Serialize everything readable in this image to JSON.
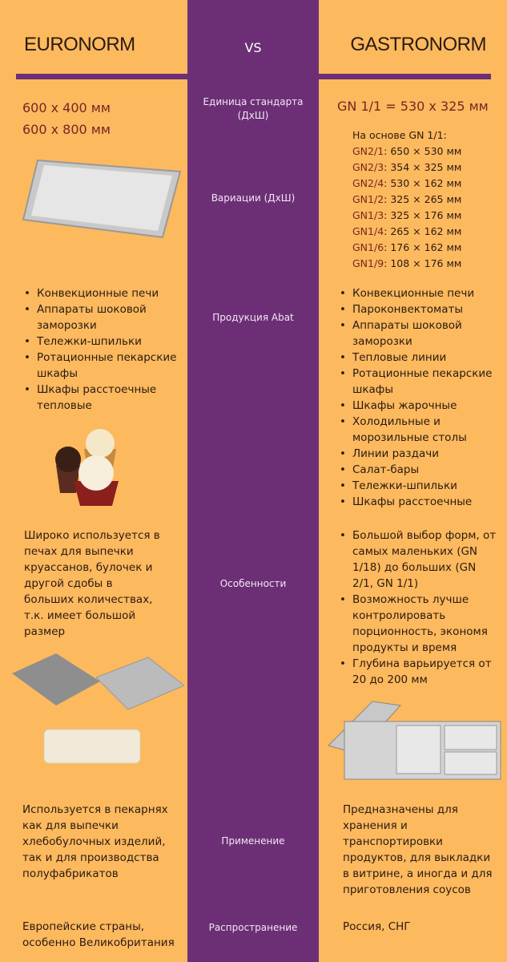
{
  "header": {
    "left": "EURONORM",
    "vs": "VS",
    "right": "GASTRONORM"
  },
  "rows": {
    "unit": {
      "label": "Единица стандарта (ДхШ)",
      "left": [
        "600 x 400 мм",
        "600 x 800 мм"
      ],
      "right": "GN 1/1 = 530 x 325 мм"
    },
    "variations": {
      "label": "Вариации (ДхШ)",
      "intro": "На основе GN 1/1:",
      "items": [
        {
          "code": "GN2/1",
          "size": ": 650 × 530 мм"
        },
        {
          "code": "GN2/3",
          "size": ": 354 × 325 мм"
        },
        {
          "code": "GN2/4",
          "size": ": 530 × 162 мм"
        },
        {
          "code": "GN1/2",
          "size": ": 325 × 265 мм"
        },
        {
          "code": "GN1/3",
          "size": ": 325 × 176 мм"
        },
        {
          "code": "GN1/4",
          "size": ": 265 × 162 мм"
        },
        {
          "code": "GN1/6",
          "size": ": 176 × 162 мм"
        },
        {
          "code": "GN1/9",
          "size": ": 108 × 176 мм"
        }
      ]
    },
    "products": {
      "label": "Продукция Abat",
      "left": [
        "Конвекционные печи",
        "Аппараты шоковой заморозки",
        "Тележки-шпильки",
        "Ротационные пекарские шкафы",
        "Шкафы расстоечные тепловые"
      ],
      "right": [
        "Конвекционные печи",
        "Пароконвектоматы",
        "Аппараты шоковой заморозки",
        "Тепловые линии",
        "Ротационные пекарские шкафы",
        "Шкафы жарочные",
        "Холодильные и морозильные столы",
        "Линии раздачи",
        "Салат-бары",
        "Тележки-шпильки",
        "Шкафы расстоечные"
      ]
    },
    "features": {
      "label": "Особенности",
      "left": "Широко используется в печах для выпечки круассанов, булочек и другой сдобы в больших количествах, т.к. имеет большой размер",
      "right": [
        "Большой выбор форм, от самых маленьких (GN 1/18) до больших (GN 2/1, GN 1/1)",
        "Возможность лучше контролировать порционность, экономя продукты и время",
        "Глубина варьируется от 20 до 200 мм"
      ]
    },
    "application": {
      "label": "Применение",
      "left": "Используется в пекарнях как для выпечки хлебобулочных изделий, так и для производства полуфабрикатов",
      "right": "Предназначены для хранения и транспортировки продуктов, для выкладки в витрине, а иногда и для приготовления соусов"
    },
    "distribution": {
      "label": "Распространение",
      "left": "Европейские страны, особенно Великобритания",
      "right": "Россия, СНГ"
    }
  },
  "colors": {
    "background": "#fdb95e",
    "purple": "#6c2f76",
    "accent_text": "#7a2424"
  }
}
